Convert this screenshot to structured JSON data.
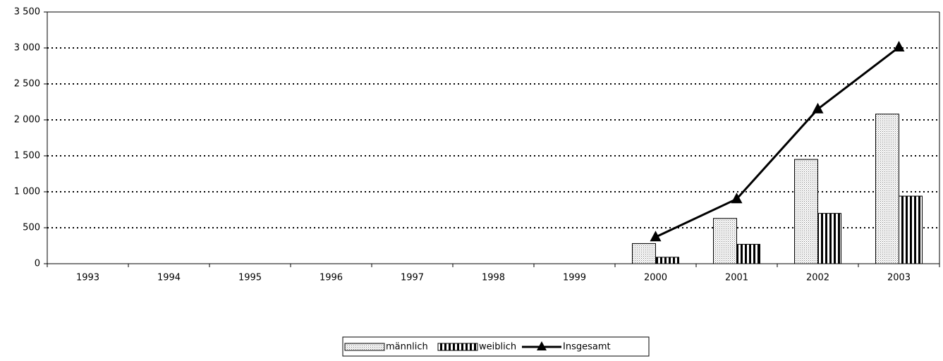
{
  "chart_data": {
    "type": "bar-line",
    "categories": [
      "1993",
      "1994",
      "1995",
      "1996",
      "1997",
      "1998",
      "1999",
      "2000",
      "2001",
      "2002",
      "2003"
    ],
    "series": [
      {
        "name": "männlich",
        "type": "bar",
        "pattern": "dotted",
        "color": "#000000",
        "values": [
          null,
          null,
          null,
          null,
          null,
          null,
          null,
          280,
          630,
          1450,
          2080
        ]
      },
      {
        "name": "weiblich",
        "type": "bar",
        "pattern": "vertical-stripes",
        "color": "#000000",
        "values": [
          null,
          null,
          null,
          null,
          null,
          null,
          null,
          90,
          270,
          700,
          940
        ]
      },
      {
        "name": "Insgesamt",
        "type": "line",
        "marker": "triangle",
        "color": "#000000",
        "values": [
          null,
          null,
          null,
          null,
          null,
          null,
          null,
          370,
          900,
          2150,
          3010
        ]
      }
    ],
    "ylim": [
      0,
      3500
    ],
    "yticks": [
      0,
      500,
      {
        "value": 1000,
        "label": "1 000"
      },
      {
        "value": 1500,
        "label": "1 500"
      },
      {
        "value": 2000,
        "label": "2 000"
      },
      {
        "value": 2500,
        "label": "2 500"
      },
      {
        "value": 3000,
        "label": "3 000"
      },
      {
        "value": 3500,
        "label": "3 500"
      }
    ],
    "grid": true,
    "legend": "bottom"
  }
}
